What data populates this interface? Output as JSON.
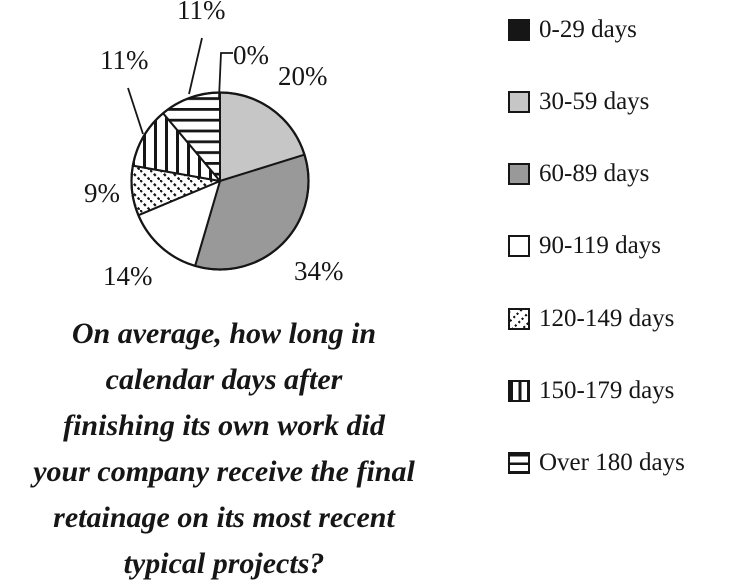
{
  "page": {
    "background": "#ffffff"
  },
  "chart_data": {
    "type": "pie",
    "title": "On average, how long in calendar days after finishing its own work did your company receive the final retainage on its most recent typical projects?",
    "title_lines": [
      "On average, how long in",
      "calendar days after",
      "finishing its own work did",
      "your company receive the final",
      "retainage on its most recent",
      "typical projects?"
    ],
    "legend_position": "right",
    "start_angle_deg": 0,
    "direction": "clockwise",
    "slices": [
      {
        "label": "0-29 days",
        "value": 0,
        "pct_label": "0%",
        "fill": "black"
      },
      {
        "label": "30-59 days",
        "value": 20,
        "pct_label": "20%",
        "fill": "light-gray"
      },
      {
        "label": "60-89 days",
        "value": 34,
        "pct_label": "34%",
        "fill": "dark-gray"
      },
      {
        "label": "90-119 days",
        "value": 14,
        "pct_label": "14%",
        "fill": "white"
      },
      {
        "label": "120-149 days",
        "value": 9,
        "pct_label": "9%",
        "fill": "diagonal-dashed-hatch"
      },
      {
        "label": "150-179 days",
        "value": 11,
        "pct_label": "11%",
        "fill": "vertical-stripes"
      },
      {
        "label": "Over 180 days",
        "value": 11,
        "pct_label": "11%",
        "fill": "horizontal-stripes"
      }
    ],
    "colors": {
      "ink": "#161616",
      "light_gray": "#c6c6c6",
      "dark_gray": "#999999",
      "background": "#ffffff"
    }
  }
}
